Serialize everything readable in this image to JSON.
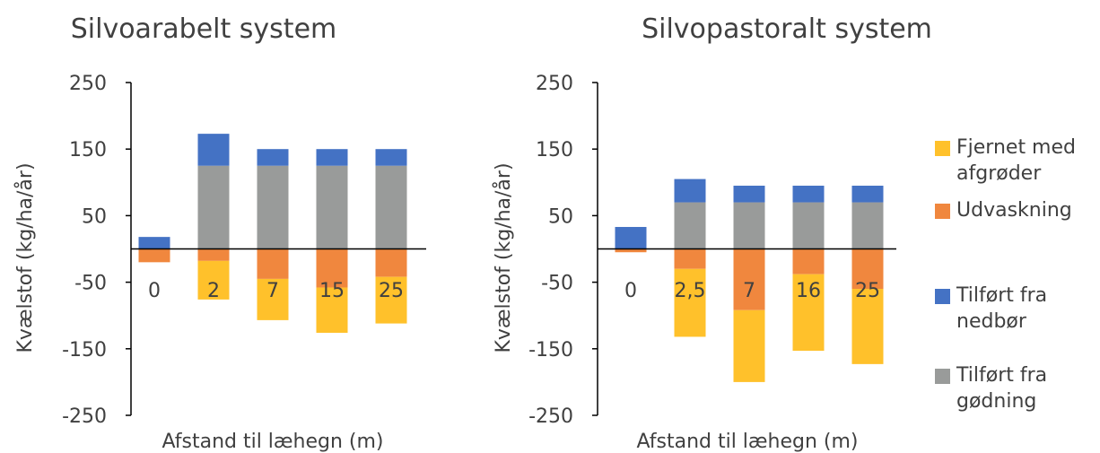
{
  "colors": {
    "fjernet": "#FFC12B",
    "udvaskning": "#F0873E",
    "nedbor": "#4472C4",
    "godning": "#999B9A",
    "axis": "#000000",
    "text": "#404040"
  },
  "legend": [
    {
      "key": "fjernet",
      "label": "Fjernet med afgrøder",
      "lines": [
        "Fjernet med",
        "afgrøder"
      ],
      "icon": "square-swatch"
    },
    {
      "key": "udvaskning",
      "label": "Udvaskning",
      "lines": [
        "Udvaskning"
      ],
      "icon": "square-swatch"
    },
    {
      "key": "nedbor",
      "label": "Tilført fra nedbør",
      "lines": [
        "Tilført fra",
        "nedbør"
      ],
      "icon": "square-swatch"
    },
    {
      "key": "godning",
      "label": "Tilført fra gødning",
      "lines": [
        "Tilført fra",
        "gødning"
      ],
      "icon": "square-swatch"
    }
  ],
  "chart_data": [
    {
      "type": "bar",
      "stacked": true,
      "title": "Silvoarabelt system",
      "xlabel": "Afstand til læhegn (m)",
      "ylabel": "Kvælstof (kg/ha/år)",
      "ylim": [
        -250,
        250
      ],
      "yticks": [
        "250",
        "150",
        "50",
        "-50",
        "-150",
        "-250"
      ],
      "categories": [
        "0",
        "2",
        "7",
        "15",
        "25"
      ],
      "series": [
        {
          "name": "Tilført fra gødning",
          "key": "godning",
          "values": [
            0,
            125,
            125,
            125,
            125
          ]
        },
        {
          "name": "Tilført fra nedbør",
          "key": "nedbor",
          "values": [
            18,
            48,
            25,
            25,
            25
          ]
        },
        {
          "name": "Udvaskning",
          "key": "udvaskning",
          "values": [
            -20,
            -18,
            -45,
            -58,
            -42
          ]
        },
        {
          "name": "Fjernet med afgrøder",
          "key": "fjernet",
          "values": [
            0,
            -58,
            -62,
            -68,
            -70
          ]
        }
      ]
    },
    {
      "type": "bar",
      "stacked": true,
      "title": "Silvopastoralt system",
      "xlabel": "Afstand til læhegn (m)",
      "ylabel": "Kvælstof (kg/ha/år)",
      "ylim": [
        -250,
        250
      ],
      "yticks": [
        "250",
        "150",
        "50",
        "-50",
        "-150",
        "-250"
      ],
      "categories": [
        "0",
        "2,5",
        "7",
        "16",
        "25"
      ],
      "series": [
        {
          "name": "Tilført fra gødning",
          "key": "godning",
          "values": [
            0,
            70,
            70,
            70,
            70
          ]
        },
        {
          "name": "Tilført fra nedbør",
          "key": "nedbor",
          "values": [
            33,
            35,
            25,
            25,
            25
          ]
        },
        {
          "name": "Udvaskning",
          "key": "udvaskning",
          "values": [
            -5,
            -30,
            -92,
            -38,
            -60
          ]
        },
        {
          "name": "Fjernet med afgrøder",
          "key": "fjernet",
          "values": [
            0,
            -102,
            -108,
            -115,
            -113
          ]
        }
      ]
    }
  ]
}
